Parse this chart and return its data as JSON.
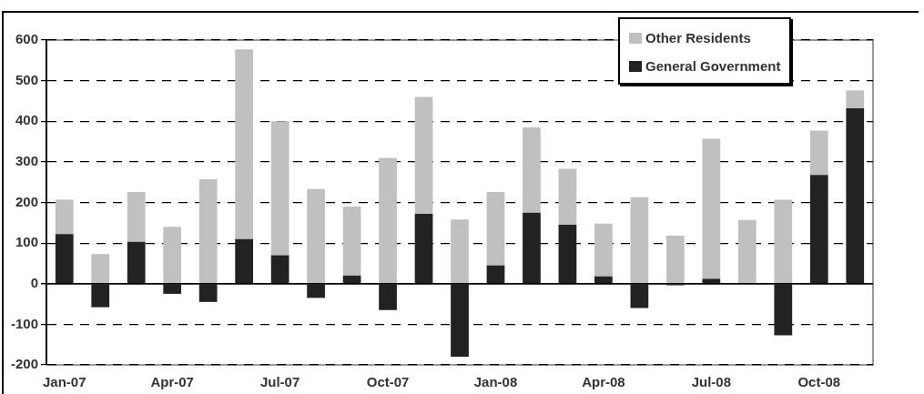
{
  "chart_data": {
    "type": "bar",
    "stacked": true,
    "categories": [
      "Jan-07",
      null,
      null,
      "Apr-07",
      null,
      null,
      "Jul-07",
      null,
      null,
      "Oct-07",
      null,
      null,
      "Jan-08",
      null,
      null,
      "Apr-08",
      null,
      null,
      "Jul-08",
      null,
      null,
      "Oct-08",
      null
    ],
    "series": [
      {
        "name": "General Government",
        "color": "#222222",
        "values": [
          122,
          -58,
          103,
          -25,
          -45,
          110,
          70,
          -35,
          20,
          -65,
          172,
          -180,
          45,
          175,
          145,
          18,
          -60,
          -4,
          12,
          0,
          -127,
          268,
          432
        ]
      },
      {
        "name": "Other Residents",
        "color": "#c0c0c0",
        "values": [
          85,
          73,
          123,
          140,
          257,
          467,
          330,
          233,
          170,
          310,
          288,
          158,
          181,
          210,
          138,
          130,
          213,
          118,
          345,
          157,
          207,
          109,
          44
        ]
      }
    ],
    "ylim": [
      -200,
      600
    ],
    "yticks": [
      -200,
      -100,
      0,
      100,
      200,
      300,
      400,
      500,
      600
    ],
    "grid": "y",
    "line_style": "dashed",
    "legend": "top right"
  }
}
